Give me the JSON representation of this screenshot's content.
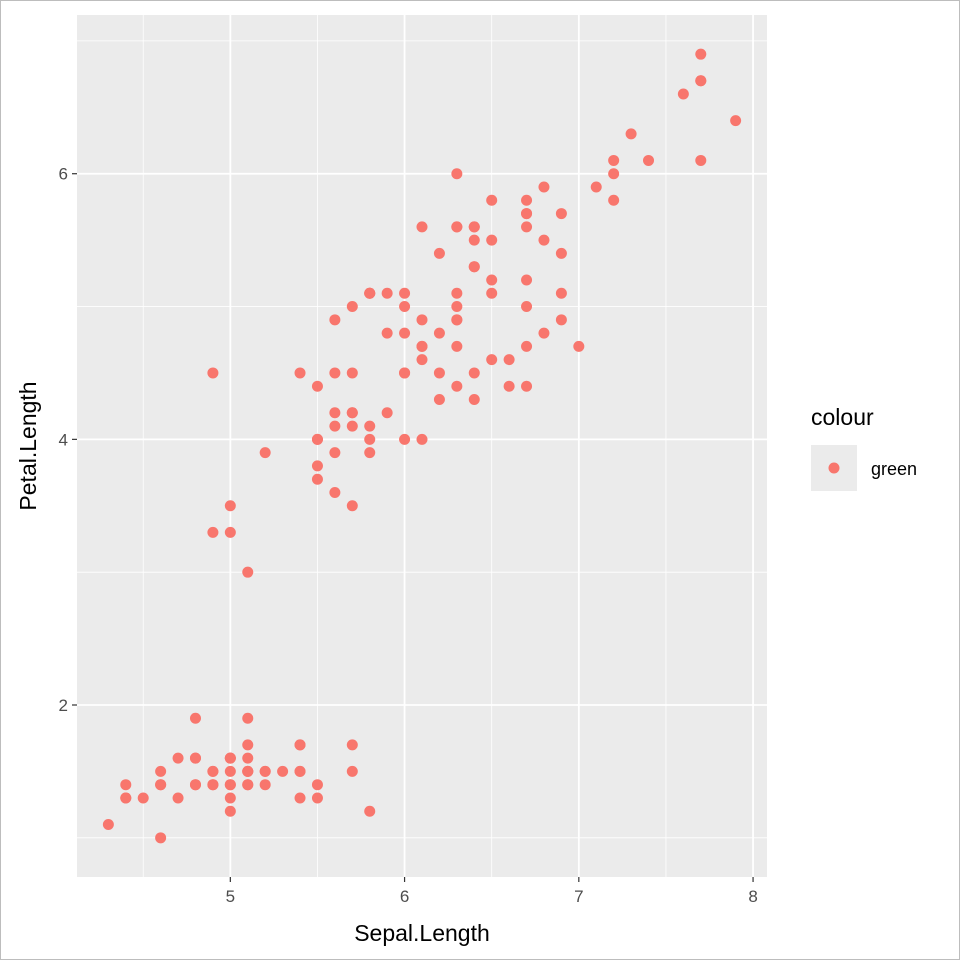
{
  "chart_data": {
    "type": "scatter",
    "xlabel": "Sepal.Length",
    "ylabel": "Petal.Length",
    "xlim": [
      4.12,
      8.08
    ],
    "ylim": [
      0.705,
      7.195
    ],
    "x_ticks": [
      5,
      6,
      7,
      8
    ],
    "y_ticks": [
      2,
      4,
      6
    ],
    "x_minor": [
      4.5,
      5.5,
      6.5,
      7.5
    ],
    "y_minor": [
      1,
      3,
      5,
      7
    ],
    "grid": true,
    "legend": {
      "title": "colour",
      "entries": [
        "green"
      ],
      "placement": "right"
    },
    "point_color": "#F8766D",
    "panel_color": "#EBEBEB",
    "x": [
      5.1,
      4.9,
      4.7,
      4.6,
      5.0,
      5.4,
      4.6,
      5.0,
      4.4,
      4.9,
      5.4,
      4.8,
      4.8,
      4.3,
      5.8,
      5.7,
      5.4,
      5.1,
      5.7,
      5.1,
      5.4,
      5.1,
      4.6,
      5.1,
      4.8,
      5.0,
      5.0,
      5.2,
      5.2,
      4.7,
      4.8,
      5.4,
      5.2,
      5.5,
      4.9,
      5.0,
      5.5,
      4.9,
      4.4,
      5.1,
      5.0,
      4.5,
      4.4,
      5.0,
      5.1,
      4.8,
      5.1,
      4.6,
      5.3,
      5.0,
      7.0,
      6.4,
      6.9,
      5.5,
      6.5,
      5.7,
      6.3,
      4.9,
      6.6,
      5.2,
      5.0,
      5.9,
      6.0,
      6.1,
      5.6,
      6.7,
      5.6,
      5.8,
      6.2,
      5.6,
      5.9,
      6.1,
      6.3,
      6.1,
      6.4,
      6.6,
      6.8,
      6.7,
      6.0,
      5.7,
      5.5,
      5.5,
      5.8,
      6.0,
      5.4,
      6.0,
      6.7,
      6.3,
      5.6,
      5.5,
      5.5,
      6.1,
      5.8,
      5.0,
      5.6,
      5.7,
      5.7,
      6.2,
      5.1,
      5.7,
      6.3,
      5.8,
      7.1,
      6.3,
      6.5,
      7.6,
      4.9,
      7.3,
      6.7,
      7.2,
      6.5,
      6.4,
      6.8,
      5.7,
      5.8,
      6.4,
      6.5,
      7.7,
      7.7,
      6.0,
      6.9,
      5.6,
      7.7,
      6.3,
      6.7,
      7.2,
      6.2,
      6.1,
      6.4,
      7.2,
      7.4,
      7.9,
      6.4,
      6.3,
      6.1,
      7.7,
      6.3,
      6.4,
      6.0,
      6.9,
      6.7,
      6.9,
      5.8,
      6.8,
      6.7,
      6.7,
      6.3,
      6.5,
      6.2,
      5.9
    ],
    "y": [
      1.4,
      1.4,
      1.3,
      1.5,
      1.4,
      1.7,
      1.4,
      1.5,
      1.4,
      1.5,
      1.5,
      1.6,
      1.4,
      1.1,
      1.2,
      1.5,
      1.3,
      1.4,
      1.7,
      1.5,
      1.7,
      1.5,
      1.0,
      1.7,
      1.9,
      1.6,
      1.6,
      1.5,
      1.4,
      1.6,
      1.6,
      1.5,
      1.5,
      1.4,
      1.5,
      1.2,
      1.3,
      1.4,
      1.3,
      1.5,
      1.3,
      1.3,
      1.3,
      1.6,
      1.9,
      1.4,
      1.6,
      1.4,
      1.5,
      1.4,
      4.7,
      4.5,
      4.9,
      4.0,
      4.6,
      4.5,
      4.7,
      3.3,
      4.6,
      3.9,
      3.5,
      4.2,
      4.0,
      4.7,
      3.6,
      4.4,
      4.5,
      4.1,
      4.5,
      3.9,
      4.8,
      4.0,
      4.9,
      4.7,
      4.3,
      4.4,
      4.8,
      5.0,
      4.5,
      3.5,
      3.8,
      3.7,
      3.9,
      5.1,
      4.5,
      4.5,
      4.7,
      4.4,
      4.1,
      4.0,
      4.4,
      4.6,
      4.0,
      3.3,
      4.2,
      4.2,
      4.2,
      4.3,
      3.0,
      4.1,
      6.0,
      5.1,
      5.9,
      5.6,
      5.8,
      6.6,
      4.5,
      6.3,
      5.8,
      6.1,
      5.1,
      5.3,
      5.5,
      5.0,
      5.1,
      5.3,
      5.5,
      6.7,
      6.9,
      5.0,
      5.7,
      4.9,
      6.7,
      4.9,
      5.7,
      6.0,
      4.8,
      4.9,
      5.6,
      5.8,
      6.1,
      6.4,
      5.6,
      5.1,
      5.6,
      6.1,
      5.6,
      5.5,
      4.8,
      5.4,
      5.6,
      5.1,
      5.1,
      5.9,
      5.7,
      5.2,
      5.0,
      5.2,
      5.4,
      5.1
    ]
  }
}
